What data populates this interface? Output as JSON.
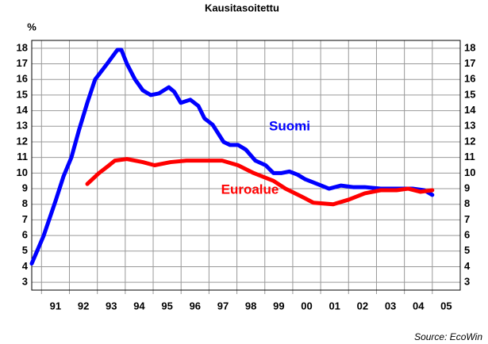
{
  "chart_data": {
    "type": "line",
    "subtitle": "Kausitasoitettu",
    "y_label": "%",
    "source": "Source: EcoWin",
    "xlim": [
      1990.65,
      2006.0
    ],
    "xticks": [
      {
        "value": 1991.5,
        "label": "91"
      },
      {
        "value": 1992.5,
        "label": "92"
      },
      {
        "value": 1993.5,
        "label": "93"
      },
      {
        "value": 1994.5,
        "label": "94"
      },
      {
        "value": 1995.5,
        "label": "95"
      },
      {
        "value": 1996.5,
        "label": "96"
      },
      {
        "value": 1997.5,
        "label": "97"
      },
      {
        "value": 1998.5,
        "label": "98"
      },
      {
        "value": 1999.5,
        "label": "99"
      },
      {
        "value": 2000.5,
        "label": "00"
      },
      {
        "value": 2001.5,
        "label": "01"
      },
      {
        "value": 2002.5,
        "label": "02"
      },
      {
        "value": 2003.5,
        "label": "03"
      },
      {
        "value": 2004.5,
        "label": "04"
      },
      {
        "value": 2005.5,
        "label": "05"
      }
    ],
    "ylim": [
      2.5,
      18.5
    ],
    "yticks": [
      3,
      4,
      5,
      6,
      7,
      8,
      9,
      10,
      11,
      12,
      13,
      14,
      15,
      16,
      17,
      18
    ],
    "grid": true,
    "series": [
      {
        "name": "Suomi",
        "color": "#0000ff",
        "x": [
          1990.65,
          1991.08,
          1991.5,
          1991.79,
          1992.07,
          1992.35,
          1992.64,
          1992.92,
          1993.35,
          1993.72,
          1993.86,
          1994.06,
          1994.35,
          1994.63,
          1994.91,
          1995.2,
          1995.56,
          1995.76,
          1995.99,
          1996.33,
          1996.62,
          1996.84,
          1997.13,
          1997.52,
          1997.75,
          1998.04,
          1998.32,
          1998.66,
          1999.03,
          1999.31,
          1999.6,
          1999.88,
          2000.17,
          2000.45,
          2000.74,
          2001.02,
          2001.3,
          2001.73,
          2002.16,
          2002.58,
          2003.15,
          2003.72,
          2004.29,
          2004.71,
          2005.0
        ],
        "values": [
          4.2,
          6.0,
          8.2,
          9.8,
          11.0,
          12.8,
          14.5,
          16.0,
          17.0,
          17.9,
          17.9,
          17.0,
          16.0,
          15.3,
          15.0,
          15.1,
          15.5,
          15.2,
          14.5,
          14.7,
          14.3,
          13.5,
          13.1,
          12.0,
          11.8,
          11.8,
          11.5,
          10.8,
          10.5,
          10.0,
          10.0,
          10.1,
          9.9,
          9.6,
          9.4,
          9.2,
          9.0,
          9.2,
          9.1,
          9.1,
          9.0,
          9.0,
          9.0,
          8.9,
          8.6
        ]
      },
      {
        "name": "Euroalue",
        "color": "#ff0000",
        "x": [
          1992.64,
          1993.06,
          1993.35,
          1993.63,
          1994.06,
          1994.63,
          1995.05,
          1995.62,
          1996.19,
          1996.9,
          1997.47,
          1998.04,
          1998.6,
          1999.31,
          1999.74,
          2000.31,
          2000.74,
          2001.45,
          2002.01,
          2002.58,
          2003.15,
          2003.72,
          2004.14,
          2004.57,
          2005.0
        ],
        "values": [
          9.3,
          10.0,
          10.4,
          10.8,
          10.9,
          10.7,
          10.5,
          10.7,
          10.8,
          10.8,
          10.8,
          10.5,
          10.0,
          9.5,
          9.0,
          8.5,
          8.1,
          8.0,
          8.3,
          8.7,
          8.9,
          8.9,
          9.0,
          8.8,
          8.9
        ]
      }
    ]
  }
}
